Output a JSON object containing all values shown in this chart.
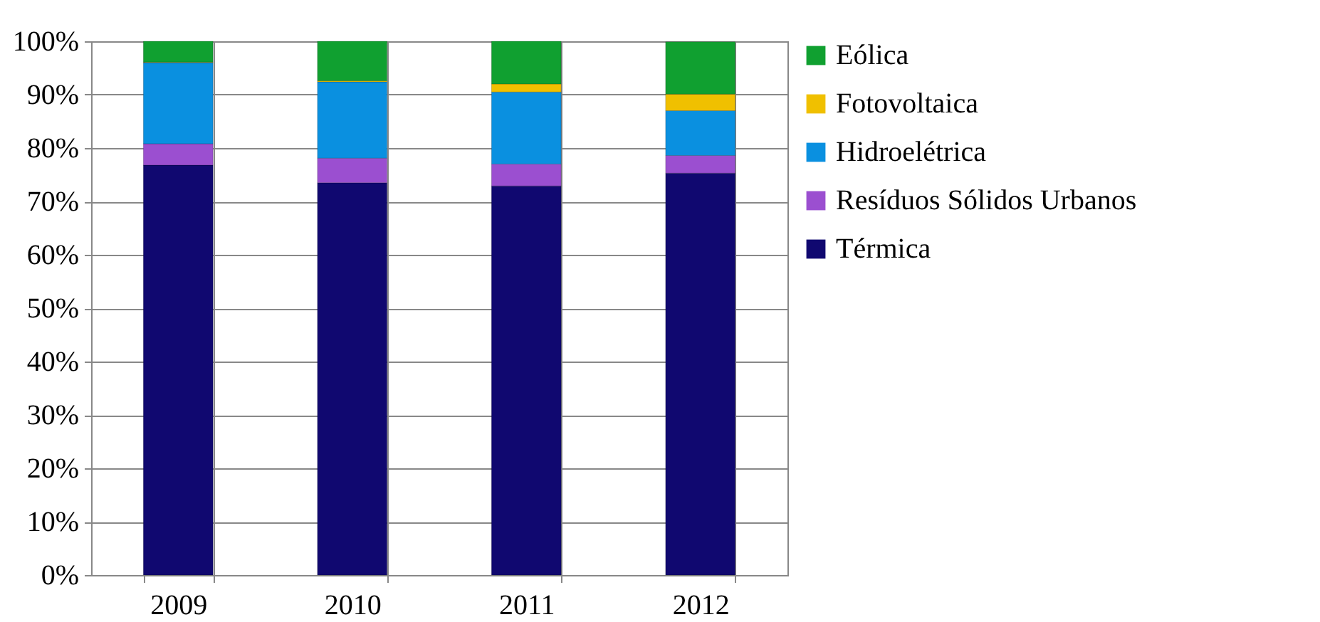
{
  "chart_data": {
    "type": "bar",
    "stacked": true,
    "categories": [
      "2009",
      "2010",
      "2011",
      "2012"
    ],
    "series": [
      {
        "name": "Térmica",
        "color": "#100870",
        "values": [
          76.8,
          73.5,
          72.9,
          75.3
        ]
      },
      {
        "name": "Resíduos Sólidos Urbanos",
        "color": "#9b4fd0",
        "values": [
          4.0,
          4.6,
          4.1,
          3.3
        ]
      },
      {
        "name": "Hidroelétrica",
        "color": "#0a90e0",
        "values": [
          15.2,
          14.3,
          13.5,
          8.4
        ]
      },
      {
        "name": "Fotovoltaica",
        "color": "#f0c000",
        "values": [
          0.1,
          0.2,
          1.5,
          3.1
        ]
      },
      {
        "name": "Eólica",
        "color": "#10a030",
        "values": [
          3.9,
          7.4,
          8.0,
          9.8
        ]
      }
    ],
    "ylim": [
      0,
      100
    ],
    "yticks": [
      {
        "value": 0,
        "label": "0%"
      },
      {
        "value": 10,
        "label": "10%"
      },
      {
        "value": 20,
        "label": "20%"
      },
      {
        "value": 30,
        "label": "30%"
      },
      {
        "value": 40,
        "label": "40%"
      },
      {
        "value": 50,
        "label": "50%"
      },
      {
        "value": 60,
        "label": "60%"
      },
      {
        "value": 70,
        "label": "70%"
      },
      {
        "value": 80,
        "label": "80%"
      },
      {
        "value": 90,
        "label": "90%"
      },
      {
        "value": 100,
        "label": "100%"
      }
    ],
    "grid": true,
    "legend": "right"
  }
}
